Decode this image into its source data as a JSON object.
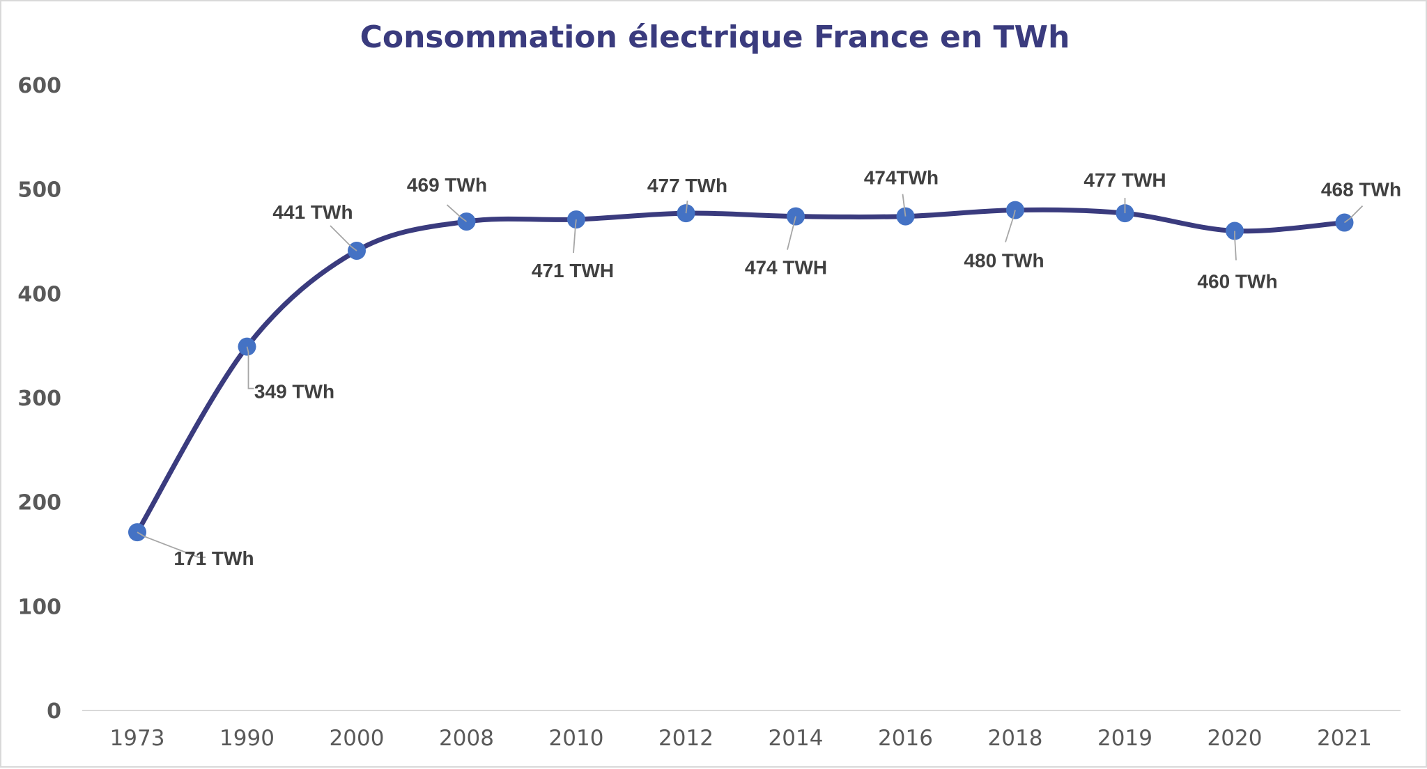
{
  "chart_data": {
    "type": "line",
    "title": "Consommation électrique France en TWh",
    "xlabel": "",
    "ylabel": "",
    "categories": [
      "1973",
      "1990",
      "2000",
      "2008",
      "2010",
      "2012",
      "2014",
      "2016",
      "2018",
      "2019",
      "2020",
      "2021"
    ],
    "values": [
      171,
      349,
      441,
      469,
      471,
      477,
      474,
      474,
      480,
      477,
      460,
      468
    ],
    "data_labels": [
      "171 TWh",
      "349 TWh",
      "441 TWh",
      "469 TWh",
      "471 TWH",
      "477 TWh",
      "474 TWH",
      "474TWh",
      "480 TWh",
      "477 TWH",
      "460 TWh",
      "468 TWh"
    ],
    "yticks": [
      "0",
      "100",
      "200",
      "300",
      "400",
      "500",
      "600"
    ],
    "ylim": [
      0,
      600
    ],
    "grid": false,
    "legend": "none",
    "smooth": true,
    "colors": {
      "line": "#3a3b7e",
      "marker": "#4472c4",
      "title": "#3a3b7e",
      "axis": "#d9d9d9",
      "leader": "#a6a6a6",
      "label": "#404040",
      "tick": "#595959"
    }
  }
}
